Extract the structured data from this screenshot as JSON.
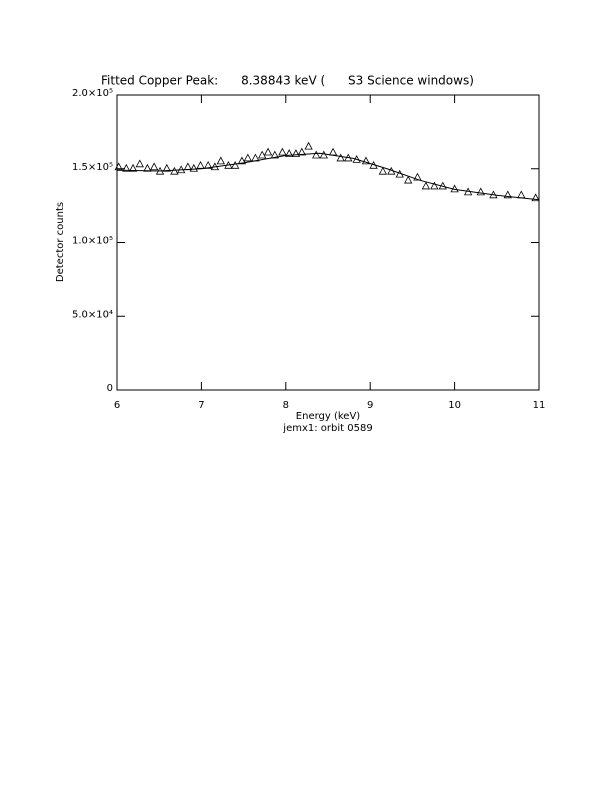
{
  "chart_data": {
    "type": "scatter",
    "title": "Fitted Copper Peak:      8.38843 keV (      S3 Science windows)",
    "x_label": "Energy (keV)",
    "subtitle": "jemx1: orbit 0589",
    "y_label": "Detector counts",
    "xlim": [
      6,
      11
    ],
    "ylim": [
      0,
      200000
    ],
    "xticks": [
      6,
      7,
      8,
      9,
      10,
      11
    ],
    "yticks": [
      0,
      {
        "value": 50000,
        "label": "5.0×10⁴"
      },
      {
        "value": 100000,
        "label": "1.0×10⁵"
      },
      {
        "value": 150000,
        "label": "1.5×10⁵"
      },
      {
        "value": 200000,
        "label": "2.0×10⁵"
      }
    ],
    "color": "#000000",
    "series": [
      {
        "style": "markers",
        "x": [
          6.02,
          6.11,
          6.19,
          6.27,
          6.36,
          6.44,
          6.51,
          6.59,
          6.68,
          6.76,
          6.84,
          6.91,
          6.99,
          7.08,
          7.16,
          7.23,
          7.32,
          7.4,
          7.48,
          7.55,
          7.64,
          7.72,
          7.79,
          7.87,
          7.96,
          8.04,
          8.12,
          8.19,
          8.27,
          8.36,
          8.45,
          8.56,
          8.65,
          8.74,
          8.84,
          8.95,
          9.04,
          9.15,
          9.25,
          9.35,
          9.45,
          9.56,
          9.66,
          9.76,
          9.86,
          10.0,
          10.16,
          10.31,
          10.46,
          10.63,
          10.79,
          10.96
        ],
        "values": [
          151000,
          150000,
          150000,
          153000,
          150000,
          151000,
          148000,
          150000,
          148000,
          149000,
          151000,
          150000,
          152000,
          152000,
          151000,
          155000,
          152000,
          152000,
          155000,
          157000,
          157000,
          159000,
          161000,
          159000,
          161000,
          160000,
          160000,
          161000,
          165000,
          159000,
          159000,
          161000,
          157000,
          157000,
          156000,
          155000,
          152000,
          148000,
          148000,
          146000,
          142000,
          144000,
          138000,
          138000,
          138000,
          136000,
          134000,
          134000,
          132000,
          132000,
          132000,
          130000
        ]
      },
      {
        "style": "line",
        "x": [
          6.0,
          6.5,
          7.0,
          7.5,
          8.0,
          8.4,
          8.8,
          9.2,
          9.6,
          10.0,
          10.5,
          11.0
        ],
        "values": [
          149000,
          148500,
          150000,
          154000,
          159000,
          160500,
          157000,
          150000,
          142000,
          136000,
          132000,
          129000
        ]
      }
    ]
  }
}
